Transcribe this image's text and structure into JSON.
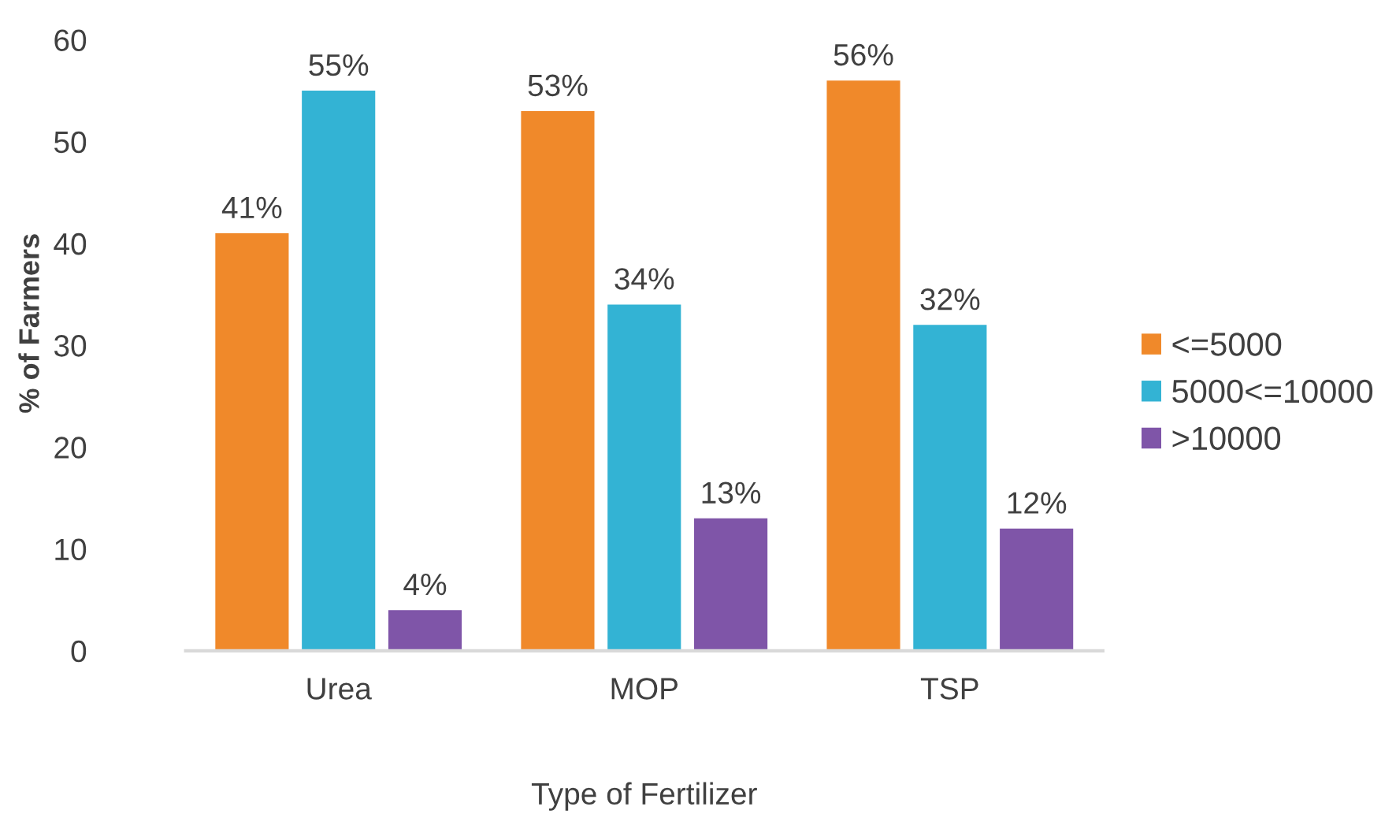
{
  "chart_data": {
    "type": "bar",
    "xlabel": "Type of Fertilizer",
    "ylabel": "% of Farmers",
    "categories": [
      "Urea",
      "MOP",
      "TSP"
    ],
    "series": [
      {
        "name": "<=5000",
        "color": "#f0892a",
        "values": [
          41,
          53,
          56
        ],
        "value_labels": [
          "41%",
          "53%",
          "56%"
        ]
      },
      {
        "name": "5000<=10000",
        "color": "#33b3d4",
        "values": [
          55,
          34,
          32
        ],
        "value_labels": [
          "55%",
          "34%",
          "32%"
        ]
      },
      {
        "name": ">10000",
        "color": "#7f55a8",
        "values": [
          4,
          13,
          12
        ],
        "value_labels": [
          "4%",
          "13%",
          "12%"
        ]
      }
    ],
    "ylim": [
      0,
      60
    ],
    "yticks": [
      0,
      10,
      20,
      30,
      40,
      50,
      60
    ],
    "grid": false,
    "legend": "right"
  }
}
